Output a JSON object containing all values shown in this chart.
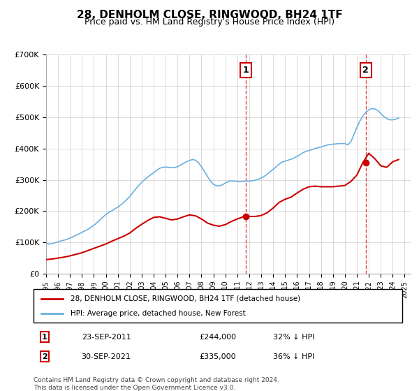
{
  "title": "28, DENHOLM CLOSE, RINGWOOD, BH24 1TF",
  "subtitle": "Price paid vs. HM Land Registry's House Price Index (HPI)",
  "xlabel": "",
  "ylabel": "",
  "ylim": [
    0,
    700000
  ],
  "yticks": [
    0,
    100000,
    200000,
    300000,
    400000,
    500000,
    600000,
    700000
  ],
  "ytick_labels": [
    "£0",
    "£100K",
    "£200K",
    "£300K",
    "£400K",
    "£500K",
    "£600K",
    "£700K"
  ],
  "hpi_color": "#6ab0e0",
  "price_color": "#cc0000",
  "marker1_date": "23-SEP-2011",
  "marker1_price": "£244,000",
  "marker1_hpi": "32% ↓ HPI",
  "marker1_year": 2011.73,
  "marker2_date": "30-SEP-2021",
  "marker2_price": "£335,000",
  "marker2_hpi": "36% ↓ HPI",
  "marker2_year": 2021.75,
  "legend_label1": "28, DENHOLM CLOSE, RINGWOOD, BH24 1TF (detached house)",
  "legend_label2": "HPI: Average price, detached house, New Forest",
  "footer": "Contains HM Land Registry data © Crown copyright and database right 2024.\nThis data is licensed under the Open Government Licence v3.0.",
  "hpi_data_x": [
    1995.0,
    1995.25,
    1995.5,
    1995.75,
    1996.0,
    1996.25,
    1996.5,
    1996.75,
    1997.0,
    1997.25,
    1997.5,
    1997.75,
    1998.0,
    1998.25,
    1998.5,
    1998.75,
    1999.0,
    1999.25,
    1999.5,
    1999.75,
    2000.0,
    2000.25,
    2000.5,
    2000.75,
    2001.0,
    2001.25,
    2001.5,
    2001.75,
    2002.0,
    2002.25,
    2002.5,
    2002.75,
    2003.0,
    2003.25,
    2003.5,
    2003.75,
    2004.0,
    2004.25,
    2004.5,
    2004.75,
    2005.0,
    2005.25,
    2005.5,
    2005.75,
    2006.0,
    2006.25,
    2006.5,
    2006.75,
    2007.0,
    2007.25,
    2007.5,
    2007.75,
    2008.0,
    2008.25,
    2008.5,
    2008.75,
    2009.0,
    2009.25,
    2009.5,
    2009.75,
    2010.0,
    2010.25,
    2010.5,
    2010.75,
    2011.0,
    2011.25,
    2011.5,
    2011.75,
    2012.0,
    2012.25,
    2012.5,
    2012.75,
    2013.0,
    2013.25,
    2013.5,
    2013.75,
    2014.0,
    2014.25,
    2014.5,
    2014.75,
    2015.0,
    2015.25,
    2015.5,
    2015.75,
    2016.0,
    2016.25,
    2016.5,
    2016.75,
    2017.0,
    2017.25,
    2017.5,
    2017.75,
    2018.0,
    2018.25,
    2018.5,
    2018.75,
    2019.0,
    2019.25,
    2019.5,
    2019.75,
    2020.0,
    2020.25,
    2020.5,
    2020.75,
    2021.0,
    2021.25,
    2021.5,
    2021.75,
    2022.0,
    2022.25,
    2022.5,
    2022.75,
    2023.0,
    2023.25,
    2023.5,
    2023.75,
    2024.0,
    2024.25,
    2024.5
  ],
  "hpi_data_y": [
    96000,
    95000,
    96000,
    99000,
    102000,
    105000,
    107000,
    110000,
    114000,
    118000,
    123000,
    127000,
    132000,
    137000,
    142000,
    148000,
    155000,
    163000,
    172000,
    181000,
    189000,
    196000,
    201000,
    207000,
    213000,
    220000,
    228000,
    237000,
    247000,
    259000,
    271000,
    282000,
    292000,
    301000,
    309000,
    316000,
    323000,
    330000,
    337000,
    340000,
    341000,
    340000,
    339000,
    340000,
    342000,
    347000,
    353000,
    358000,
    362000,
    365000,
    363000,
    355000,
    342000,
    327000,
    311000,
    296000,
    286000,
    281000,
    281000,
    284000,
    290000,
    295000,
    297000,
    296000,
    295000,
    295000,
    295000,
    296000,
    296000,
    297000,
    299000,
    302000,
    306000,
    311000,
    318000,
    326000,
    334000,
    342000,
    350000,
    357000,
    360000,
    363000,
    366000,
    370000,
    375000,
    381000,
    387000,
    391000,
    394000,
    397000,
    400000,
    403000,
    405000,
    408000,
    411000,
    413000,
    414000,
    415000,
    416000,
    416000,
    416000,
    412000,
    422000,
    444000,
    468000,
    488000,
    504000,
    516000,
    524000,
    528000,
    527000,
    522000,
    512000,
    503000,
    496000,
    492000,
    492000,
    494000,
    498000
  ],
  "price_data_x": [
    1995.0,
    1995.5,
    1996.0,
    1996.5,
    1997.0,
    1997.5,
    1998.0,
    1998.5,
    1999.0,
    1999.5,
    2000.0,
    2000.5,
    2001.0,
    2001.5,
    2002.0,
    2002.5,
    2003.0,
    2003.5,
    2004.0,
    2004.5,
    2005.0,
    2005.5,
    2006.0,
    2006.5,
    2007.0,
    2007.5,
    2008.0,
    2008.5,
    2009.0,
    2009.5,
    2010.0,
    2010.5,
    2011.0,
    2011.5,
    2012.0,
    2012.5,
    2013.0,
    2013.5,
    2014.0,
    2014.5,
    2015.0,
    2015.5,
    2016.0,
    2016.5,
    2017.0,
    2017.5,
    2018.0,
    2018.5,
    2019.0,
    2019.5,
    2020.0,
    2020.5,
    2021.0,
    2021.5,
    2022.0,
    2022.5,
    2023.0,
    2023.5,
    2024.0,
    2024.5
  ],
  "price_data_y": [
    45000,
    47000,
    50000,
    53000,
    57000,
    62000,
    67000,
    74000,
    81000,
    88000,
    95000,
    104000,
    112000,
    120000,
    130000,
    145000,
    158000,
    170000,
    180000,
    182000,
    177000,
    172000,
    175000,
    182000,
    188000,
    185000,
    175000,
    162000,
    155000,
    152000,
    157000,
    167000,
    175000,
    182000,
    183000,
    183000,
    186000,
    195000,
    210000,
    228000,
    238000,
    245000,
    258000,
    270000,
    278000,
    280000,
    278000,
    278000,
    278000,
    280000,
    282000,
    295000,
    315000,
    355000,
    385000,
    368000,
    345000,
    340000,
    358000,
    365000
  ]
}
